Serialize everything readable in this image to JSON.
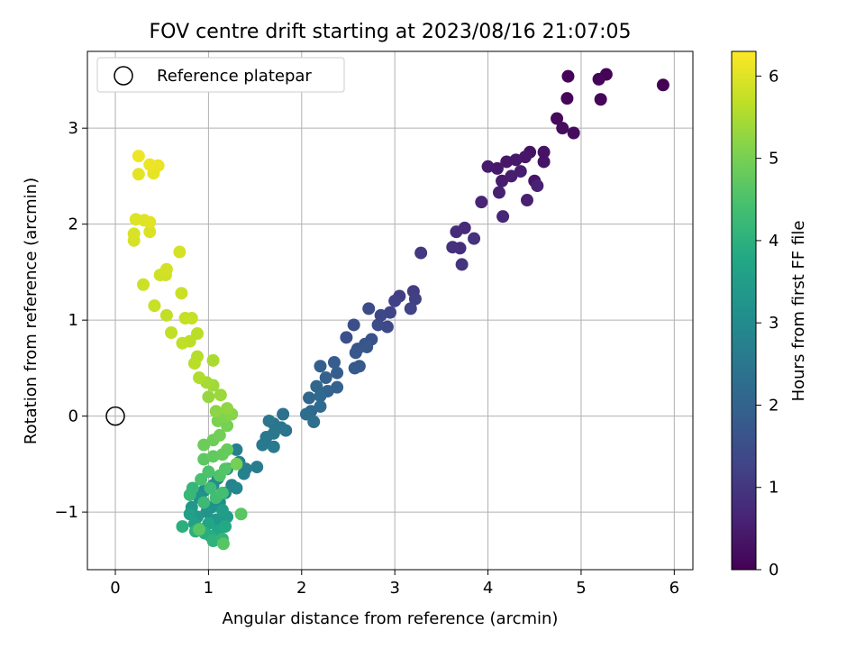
{
  "chart_data": {
    "type": "scatter",
    "title": "FOV centre drift starting at 2023/08/16 21:07:05",
    "xlabel": "Angular distance from reference (arcmin)",
    "ylabel": "Rotation from reference (arcmin)",
    "colorbar_label": "Hours from first FF file",
    "xlim": [
      -0.3,
      6.2
    ],
    "ylim": [
      -1.6,
      3.8
    ],
    "clim": [
      0,
      6.3
    ],
    "xticks": [
      0,
      1,
      2,
      3,
      4,
      5,
      6
    ],
    "yticks": [
      -1,
      0,
      1,
      2,
      3
    ],
    "cticks": [
      0,
      1,
      2,
      3,
      4,
      5,
      6
    ],
    "grid": true,
    "legend": {
      "position": "top-left",
      "entries": [
        {
          "label": "Reference platepar",
          "marker": "open-circle"
        }
      ]
    },
    "reference_point": {
      "x": 0,
      "y": 0
    },
    "colormap": "viridis",
    "series": [
      {
        "points": [
          [
            5.88,
            3.45,
            0.0
          ],
          [
            5.27,
            3.56,
            0.03
          ],
          [
            4.86,
            3.54,
            0.05
          ],
          [
            5.19,
            3.51,
            0.07
          ],
          [
            4.85,
            3.31,
            0.09
          ],
          [
            5.21,
            3.3,
            0.11
          ],
          [
            4.74,
            3.1,
            0.15
          ],
          [
            4.92,
            2.95,
            0.19
          ],
          [
            4.8,
            3.0,
            0.22
          ],
          [
            4.45,
            2.75,
            0.3
          ],
          [
            4.6,
            2.75,
            0.32
          ],
          [
            4.6,
            2.65,
            0.34
          ],
          [
            4.5,
            2.45,
            0.36
          ],
          [
            4.4,
            2.7,
            0.38
          ],
          [
            4.3,
            2.67,
            0.4
          ],
          [
            4.2,
            2.65,
            0.42
          ],
          [
            4.1,
            2.58,
            0.44
          ],
          [
            4.0,
            2.6,
            0.46
          ],
          [
            4.15,
            2.45,
            0.48
          ],
          [
            4.25,
            2.5,
            0.5
          ],
          [
            4.35,
            2.55,
            0.52
          ],
          [
            4.12,
            2.33,
            0.55
          ],
          [
            4.42,
            2.25,
            0.58
          ],
          [
            4.53,
            2.4,
            0.6
          ],
          [
            3.93,
            2.23,
            0.65
          ],
          [
            4.16,
            2.08,
            0.7
          ],
          [
            3.75,
            1.96,
            0.76
          ],
          [
            3.66,
            1.92,
            0.8
          ],
          [
            3.7,
            1.75,
            0.84
          ],
          [
            3.62,
            1.76,
            0.88
          ],
          [
            3.85,
            1.85,
            0.92
          ],
          [
            3.72,
            1.58,
            0.96
          ],
          [
            3.28,
            1.7,
            1.02
          ],
          [
            3.2,
            1.3,
            1.1
          ],
          [
            3.05,
            1.25,
            1.14
          ],
          [
            3.22,
            1.22,
            1.18
          ],
          [
            3.0,
            1.2,
            1.22
          ],
          [
            3.17,
            1.12,
            1.26
          ],
          [
            2.95,
            1.08,
            1.3
          ],
          [
            2.85,
            1.05,
            1.34
          ],
          [
            2.92,
            0.93,
            1.38
          ],
          [
            2.82,
            0.95,
            1.42
          ],
          [
            2.72,
            1.12,
            1.45
          ],
          [
            2.56,
            0.95,
            1.5
          ],
          [
            2.48,
            0.82,
            1.55
          ],
          [
            2.75,
            0.8,
            1.58
          ],
          [
            2.68,
            0.75,
            1.62
          ],
          [
            2.6,
            0.7,
            1.66
          ],
          [
            2.7,
            0.72,
            1.7
          ],
          [
            2.58,
            0.66,
            1.73
          ],
          [
            2.62,
            0.52,
            1.76
          ],
          [
            2.57,
            0.5,
            1.78
          ],
          [
            2.35,
            0.56,
            1.84
          ],
          [
            2.38,
            0.45,
            1.88
          ],
          [
            2.2,
            0.52,
            1.92
          ],
          [
            2.26,
            0.4,
            1.95
          ],
          [
            2.38,
            0.3,
            1.98
          ],
          [
            2.28,
            0.26,
            2.02
          ],
          [
            2.16,
            0.31,
            2.06
          ],
          [
            2.08,
            0.19,
            2.1
          ],
          [
            2.2,
            0.21,
            2.14
          ],
          [
            2.1,
            0.05,
            2.18
          ],
          [
            2.2,
            0.1,
            2.2
          ],
          [
            2.05,
            0.02,
            2.24
          ],
          [
            2.13,
            -0.06,
            2.28
          ],
          [
            1.8,
            0.02,
            2.35
          ],
          [
            1.83,
            -0.15,
            2.38
          ],
          [
            1.7,
            -0.08,
            2.42
          ],
          [
            1.78,
            -0.12,
            2.45
          ],
          [
            1.65,
            -0.05,
            2.48
          ],
          [
            1.7,
            -0.18,
            2.5
          ],
          [
            1.62,
            -0.22,
            2.52
          ],
          [
            1.58,
            -0.3,
            2.55
          ],
          [
            1.7,
            -0.32,
            2.58
          ],
          [
            1.52,
            -0.53,
            2.62
          ],
          [
            1.4,
            -0.55,
            2.66
          ],
          [
            1.3,
            -0.35,
            2.7
          ],
          [
            1.33,
            -0.48,
            2.73
          ],
          [
            1.38,
            -0.6,
            2.76
          ],
          [
            1.25,
            -0.72,
            2.8
          ],
          [
            1.2,
            -0.55,
            2.85
          ],
          [
            1.3,
            -0.75,
            2.88
          ],
          [
            1.1,
            -0.65,
            2.92
          ],
          [
            1.18,
            -0.8,
            2.96
          ],
          [
            1.05,
            -0.72,
            3.0
          ],
          [
            0.95,
            -0.78,
            3.05
          ],
          [
            1.12,
            -0.9,
            3.1
          ],
          [
            1.03,
            -0.95,
            3.15
          ],
          [
            0.9,
            -0.85,
            3.2
          ],
          [
            0.98,
            -1.0,
            3.25
          ],
          [
            0.82,
            -0.95,
            3.3
          ],
          [
            0.88,
            -1.05,
            3.35
          ],
          [
            1.08,
            -1.08,
            3.4
          ],
          [
            1.2,
            -1.05,
            3.45
          ],
          [
            1.15,
            -0.98,
            3.5
          ],
          [
            0.8,
            -1.02,
            3.55
          ],
          [
            0.85,
            -1.12,
            3.6
          ],
          [
            0.92,
            -1.18,
            3.65
          ],
          [
            1.0,
            -1.12,
            3.7
          ],
          [
            1.1,
            -1.2,
            3.75
          ],
          [
            1.18,
            -1.15,
            3.8
          ],
          [
            1.02,
            -1.25,
            3.85
          ],
          [
            0.96,
            -1.22,
            3.9
          ],
          [
            0.72,
            -1.15,
            3.95
          ],
          [
            0.86,
            -1.2,
            4.0
          ],
          [
            1.05,
            -1.3,
            4.05
          ],
          [
            1.15,
            -1.28,
            4.1
          ],
          [
            0.83,
            -0.75,
            4.15
          ],
          [
            0.8,
            -0.82,
            4.2
          ],
          [
            0.95,
            -0.9,
            4.25
          ],
          [
            1.02,
            -0.75,
            4.3
          ],
          [
            1.08,
            -0.85,
            4.35
          ],
          [
            1.15,
            -0.8,
            4.4
          ],
          [
            0.92,
            -0.66,
            4.45
          ],
          [
            1.0,
            -0.58,
            4.5
          ],
          [
            1.12,
            -0.62,
            4.55
          ],
          [
            1.18,
            -0.55,
            4.6
          ],
          [
            1.16,
            -1.33,
            4.62
          ],
          [
            0.9,
            -1.18,
            4.64
          ],
          [
            1.35,
            -1.02,
            4.66
          ],
          [
            0.95,
            -0.45,
            4.7
          ],
          [
            1.05,
            -0.42,
            4.74
          ],
          [
            1.15,
            -0.4,
            4.78
          ],
          [
            1.2,
            -0.35,
            4.82
          ],
          [
            0.95,
            -0.3,
            4.86
          ],
          [
            1.05,
            -0.25,
            4.9
          ],
          [
            1.12,
            -0.2,
            4.94
          ],
          [
            1.3,
            -0.5,
            4.97
          ],
          [
            1.2,
            -0.1,
            5.0
          ],
          [
            1.1,
            -0.05,
            5.05
          ],
          [
            1.18,
            0.0,
            5.1
          ],
          [
            1.25,
            0.02,
            5.15
          ],
          [
            1.08,
            0.05,
            5.2
          ],
          [
            1.2,
            0.08,
            5.25
          ],
          [
            1.0,
            0.2,
            5.3
          ],
          [
            1.13,
            0.22,
            5.35
          ],
          [
            1.05,
            0.32,
            5.4
          ],
          [
            0.98,
            0.35,
            5.45
          ],
          [
            1.05,
            0.58,
            5.5
          ],
          [
            0.9,
            0.4,
            5.55
          ],
          [
            0.88,
            0.62,
            5.6
          ],
          [
            0.85,
            0.55,
            5.62
          ],
          [
            0.88,
            0.86,
            5.64
          ],
          [
            0.8,
            0.78,
            5.66
          ],
          [
            0.72,
            0.76,
            5.68
          ],
          [
            0.6,
            0.87,
            5.7
          ],
          [
            0.55,
            1.05,
            5.72
          ],
          [
            0.75,
            1.02,
            5.74
          ],
          [
            0.82,
            1.02,
            5.76
          ],
          [
            0.42,
            1.15,
            5.78
          ],
          [
            0.71,
            1.28,
            5.8
          ],
          [
            0.3,
            1.37,
            5.82
          ],
          [
            0.48,
            1.47,
            5.84
          ],
          [
            0.54,
            1.47,
            5.86
          ],
          [
            0.55,
            1.53,
            5.88
          ],
          [
            0.69,
            1.71,
            5.9
          ],
          [
            0.2,
            1.83,
            5.92
          ],
          [
            0.2,
            1.9,
            5.94
          ],
          [
            0.37,
            1.92,
            5.96
          ],
          [
            0.22,
            2.05,
            5.98
          ],
          [
            0.31,
            2.04,
            6.0
          ],
          [
            0.37,
            2.02,
            6.02
          ],
          [
            0.25,
            2.52,
            6.05
          ],
          [
            0.41,
            2.53,
            6.08
          ],
          [
            0.46,
            2.61,
            6.1
          ],
          [
            0.37,
            2.62,
            6.12
          ],
          [
            0.25,
            2.71,
            6.15
          ]
        ]
      }
    ]
  }
}
